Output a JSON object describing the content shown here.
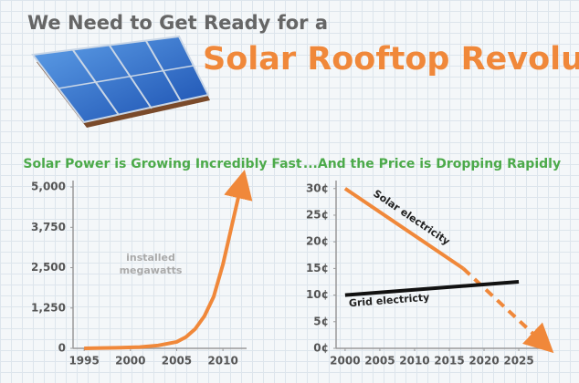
{
  "header": {
    "line1": "We Need to Get Ready for a",
    "line2": "Solar Rooftop Revolution"
  },
  "chart_data": [
    {
      "type": "line",
      "title": "Solar Power is Growing Incredibly Fast",
      "annotation": [
        "installed",
        "megawatts"
      ],
      "series": [
        {
          "color": "#f0883a",
          "x": [
            1995,
            1997,
            1999,
            2001,
            2003,
            2005,
            2006,
            2007,
            2008,
            2009,
            2010,
            2012
          ],
          "values": [
            0,
            10,
            20,
            40,
            90,
            200,
            350,
            600,
            1000,
            1600,
            2600,
            5100
          ],
          "arrow": true
        }
      ],
      "xlim": [
        1993.8,
        2013.05
      ],
      "xticks": [
        1995,
        2000,
        2005,
        2010
      ],
      "ylim": [
        0,
        5200
      ],
      "yticks": [
        0,
        {
          "value": 1250,
          "label": "1,250"
        },
        {
          "value": 2500,
          "label": "2,500"
        },
        {
          "value": 3750,
          "label": "3,750"
        },
        {
          "value": 5000,
          "label": "5,000"
        }
      ]
    },
    {
      "type": "line",
      "title": "...And the Price is Dropping Rapidly",
      "series": [
        {
          "name": "Solar electricity",
          "color": "#f0883a",
          "x": [
            2000,
            2017,
            2028.5
          ],
          "values": [
            30,
            15,
            1
          ],
          "segment_style": [
            "solid",
            "dashed"
          ],
          "arrow": true
        },
        {
          "name": "Grid electricty",
          "color": "#111111",
          "x": [
            2000,
            2025
          ],
          "values": [
            10,
            12.5
          ],
          "segment_style": [
            "solid"
          ]
        }
      ],
      "xlim": [
        1998.7,
        2029.2
      ],
      "xticks": [
        2000,
        2005,
        2010,
        2015,
        2020,
        2025
      ],
      "ylim": [
        0,
        31.5
      ],
      "yticks": [
        {
          "value": 0,
          "label": "0¢"
        },
        {
          "value": 5,
          "label": "5¢"
        },
        {
          "value": 10,
          "label": "10¢"
        },
        {
          "value": 15,
          "label": "15¢"
        },
        {
          "value": 20,
          "label": "20¢"
        },
        {
          "value": 25,
          "label": "25¢"
        },
        {
          "value": 30,
          "label": "30¢"
        }
      ]
    }
  ]
}
